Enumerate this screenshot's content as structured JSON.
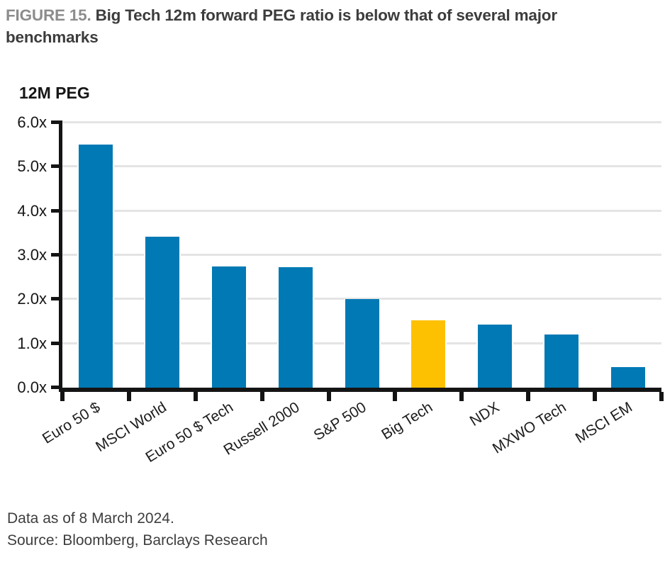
{
  "figure": {
    "label": "FIGURE 15.",
    "title": " Big Tech 12m forward PEG ratio is below that of several major benchmarks"
  },
  "chart_data": {
    "type": "bar",
    "title": "12M PEG",
    "ylabel": "12M PEG",
    "xlabel": "",
    "categories": [
      "Euro 50 $",
      "MSCI World",
      "Euro 50 $ Tech",
      "Russell 2000",
      "S&P 500",
      "Big Tech",
      "NDX",
      "MXWO Tech",
      "MSCI EM"
    ],
    "values": [
      5.5,
      3.42,
      2.74,
      2.72,
      2.0,
      1.52,
      1.43,
      1.2,
      0.47
    ],
    "highlight_category": "Big Tech",
    "ylim": [
      0,
      6
    ],
    "ytick_step": 1,
    "ytick_labels": [
      "0.0x",
      "1.0x",
      "2.0x",
      "3.0x",
      "4.0x",
      "5.0x",
      "6.0x"
    ],
    "grid": true,
    "legend": "none",
    "colors": {
      "bar": "#0079B4",
      "highlight": "#FEC101",
      "gridline": "#e4e4e4",
      "axis": "#141414"
    }
  },
  "footer": {
    "note": "Data as of 8 March 2024.",
    "source": "Source: Bloomberg, Barclays Research"
  }
}
